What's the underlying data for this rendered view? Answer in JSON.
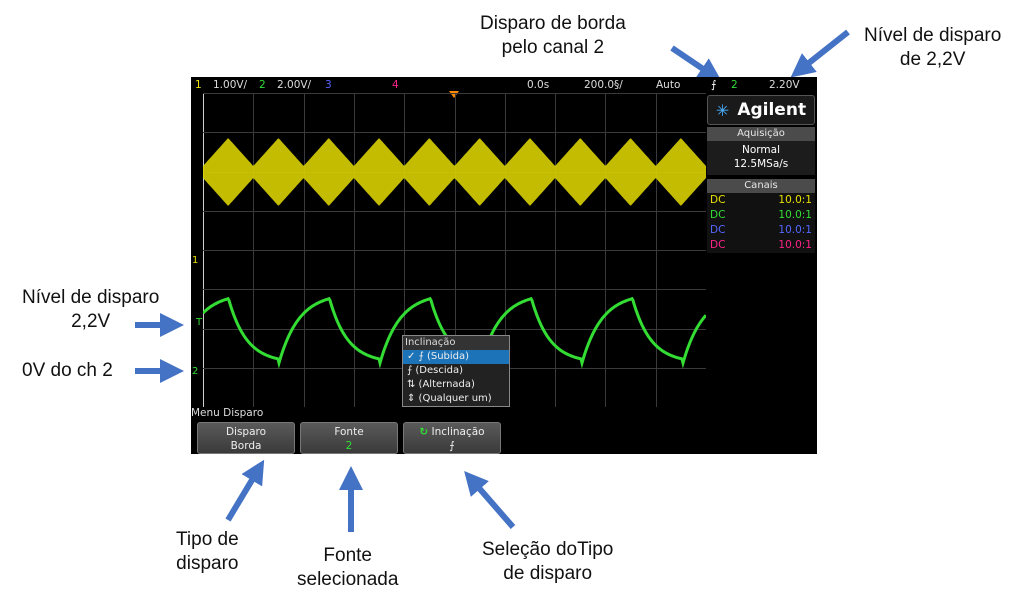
{
  "annotations": {
    "trigger_edge_ch2": [
      "Disparo de borda",
      "pelo canal 2"
    ],
    "trigger_level_top": [
      "Nível de disparo",
      "de 2,2V"
    ],
    "trigger_level_left": [
      "Nível de disparo",
      "2,2V"
    ],
    "zero_v_ch2": "0V do ch 2",
    "trigger_type": [
      "Tipo de",
      "disparo"
    ],
    "source_selected": [
      "Fonte",
      "selecionada"
    ],
    "slope_selection": [
      "Seleção doTipo",
      "de disparo"
    ]
  },
  "status_bar": {
    "ch1_num": "1",
    "ch1_scale": "1.00V/",
    "ch2_num": "2",
    "ch2_scale": "2.00V/",
    "ch3_num": "3",
    "ch4_num": "4",
    "time_offset": "0.0s",
    "time_scale": "200.0§/",
    "mode": "Auto",
    "trig_edge_symbol": "⨍",
    "trig_source": "2",
    "trig_level": "2.20V"
  },
  "side_panel": {
    "brand": "Agilent",
    "acquisition_title": "Aquisição",
    "acquisition_mode": "Normal",
    "sample_rate": "12.5MSa/s",
    "channels_title": "Canais",
    "channels": [
      {
        "coupling": "DC",
        "probe": "10.0:1",
        "color": "#e8e000"
      },
      {
        "coupling": "DC",
        "probe": "10.0:1",
        "color": "#33dd33"
      },
      {
        "coupling": "DC",
        "probe": "10.0:1",
        "color": "#5566ff"
      },
      {
        "coupling": "DC",
        "probe": "10.0:1",
        "color": "#ff2288"
      }
    ]
  },
  "markers": {
    "ch1": "1",
    "trig": "T",
    "ch2": "2"
  },
  "menu": {
    "title": "Menu Disparo",
    "softkeys": [
      {
        "label": "Disparo",
        "value": "Borda"
      },
      {
        "label": "Fonte",
        "value": "2"
      },
      {
        "label": "Inclinação",
        "value": "⨍"
      }
    ]
  },
  "slope_popup": {
    "title": "Inclinação",
    "options": [
      {
        "label": "✓ ⨍ (Subida)",
        "selected": true
      },
      {
        "label": "⨍ (Descida)",
        "selected": false
      },
      {
        "label": "⇅ (Alternada)",
        "selected": false
      },
      {
        "label": "⇕ (Qualquer um)",
        "selected": false
      }
    ]
  },
  "colors": {
    "ch1": "#e8e000",
    "ch2": "#33dd33",
    "ch3": "#5566ff",
    "ch4": "#ff2288",
    "arrow": "#4472c4",
    "trigger_marker": "#ff8800"
  }
}
